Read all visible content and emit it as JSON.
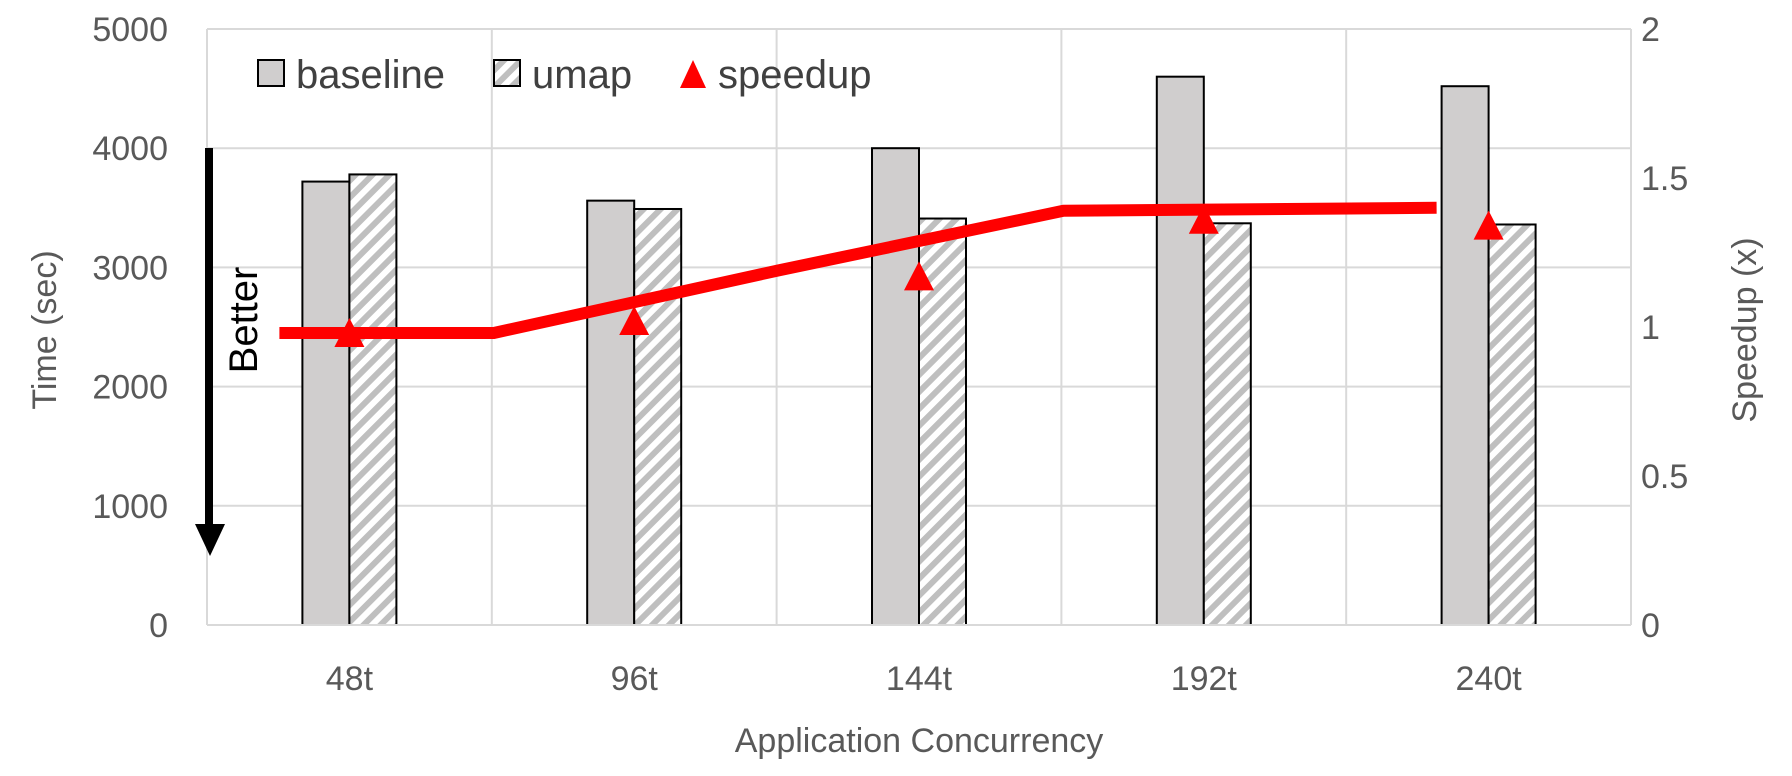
{
  "chart_data": {
    "type": "bar",
    "categories": [
      "48t",
      "96t",
      "144t",
      "192t",
      "240t"
    ],
    "series": [
      {
        "name": "baseline",
        "kind": "bar",
        "axis": "left",
        "values": [
          3720,
          3560,
          4000,
          4600,
          4520
        ],
        "color": "#d0cece"
      },
      {
        "name": "umap",
        "kind": "bar",
        "axis": "left",
        "values": [
          3780,
          3490,
          3410,
          3370,
          3360
        ],
        "color": "#bfbfbf"
      },
      {
        "name": "speedup",
        "kind": "point",
        "axis": "right",
        "values": [
          0.98,
          1.02,
          1.17,
          1.36,
          1.34
        ],
        "color": "#ff0000"
      }
    ],
    "trendline": {
      "axis": "right",
      "color": "#ff0000",
      "values": [
        0.98,
        0.98,
        1.19,
        1.39,
        1.4
      ]
    },
    "xlabel": "Application Concurrency",
    "ylabel": "Time (sec)",
    "y2label": "Speedup (x)",
    "ylim": [
      0,
      5000
    ],
    "y2lim": [
      0,
      2
    ],
    "yticks": [
      "0",
      "1000",
      "2000",
      "3000",
      "4000",
      "5000"
    ],
    "y2ticks": [
      "0",
      "0.5",
      "1",
      "1.5",
      "2"
    ],
    "grid": true,
    "legend_position": "top-left",
    "annotation": {
      "text": "Better",
      "arrow": "down",
      "color": "#000000"
    }
  }
}
